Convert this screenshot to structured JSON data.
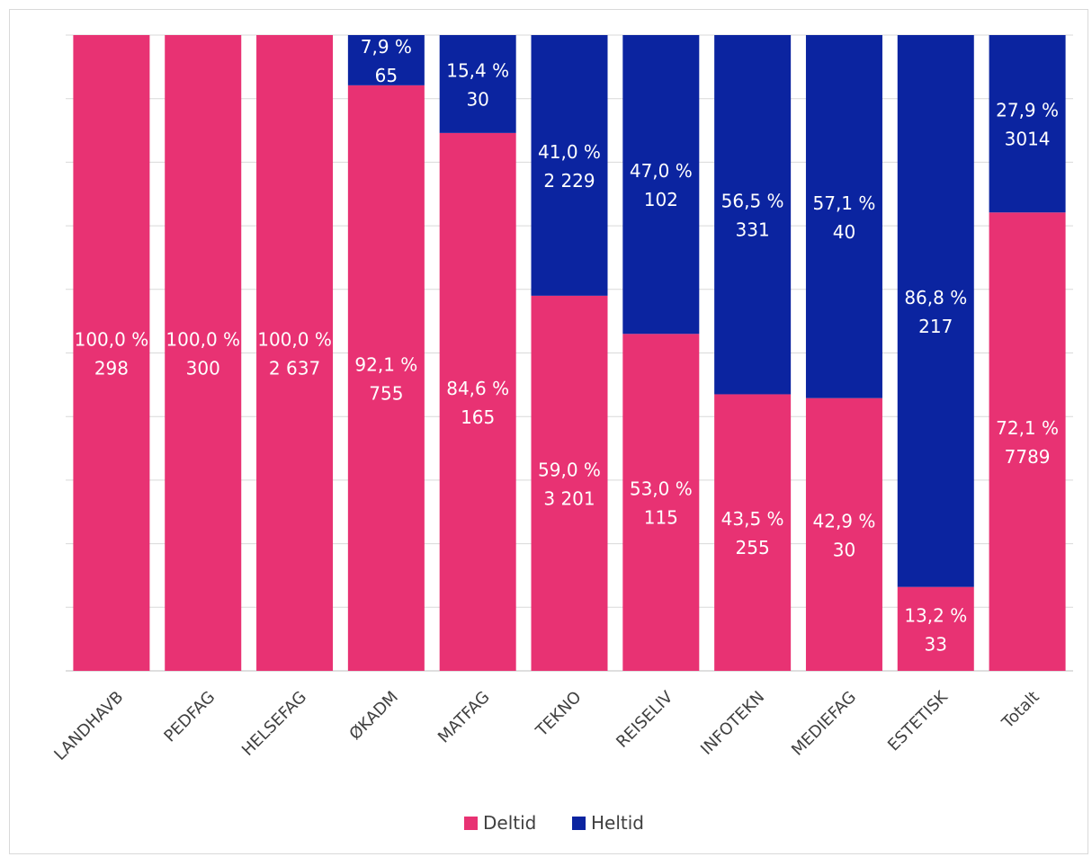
{
  "chart_data": {
    "type": "bar",
    "stacked": true,
    "normalized": true,
    "categories": [
      "LANDHAVB",
      "PEDFAG",
      "HELSEFAG",
      "ØKADM",
      "MATFAG",
      "TEKNO",
      "REISELIV",
      "INFOTEKN",
      "MEDIEFAG",
      "ESTETISK",
      "Totalt"
    ],
    "series": [
      {
        "name": "Deltid",
        "color": "#e83273",
        "percent": [
          100.0,
          100.0,
          100.0,
          92.1,
          84.6,
          59.0,
          53.0,
          43.5,
          42.9,
          13.2,
          72.1
        ],
        "pct_labels": [
          "100,0 %",
          "100,0 %",
          "100,0 %",
          "92,1 %",
          "84,6 %",
          "59,0 %",
          "53,0 %",
          "43,5 %",
          "42,9 %",
          "13,2 %",
          "72,1 %"
        ],
        "count_labels": [
          "298",
          "300",
          "2 637",
          "755",
          "165",
          "3 201",
          "115",
          "255",
          "30",
          "33",
          "7789"
        ]
      },
      {
        "name": "Heltid",
        "color": "#0b24a0",
        "percent": [
          0,
          0,
          0,
          7.9,
          15.4,
          41.0,
          47.0,
          56.5,
          57.1,
          86.8,
          27.9
        ],
        "pct_labels": [
          "",
          "",
          "",
          "7,9 %",
          "15,4 %",
          "41,0 %",
          "47,0 %",
          "56,5 %",
          "57,1 %",
          "86,8 %",
          "27,9 %"
        ],
        "count_labels": [
          "",
          "",
          "",
          "65",
          "30",
          "2 229",
          "102",
          "331",
          "40",
          "217",
          "3014"
        ]
      }
    ],
    "ylim": [
      0,
      100
    ],
    "grid": true,
    "legend": "bottom-center"
  }
}
